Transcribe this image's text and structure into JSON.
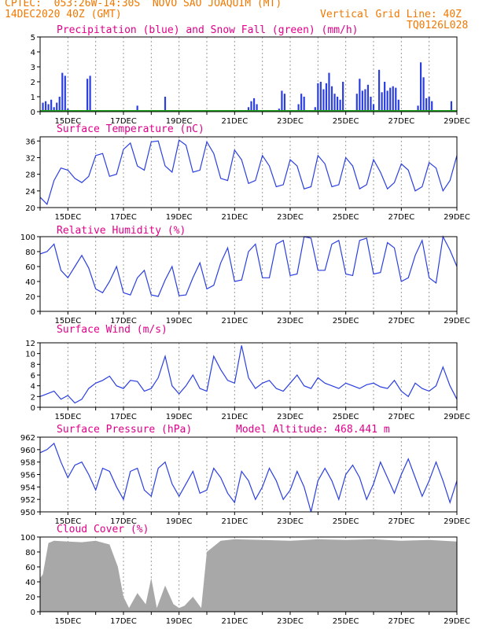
{
  "header": {
    "line1_left": "CPTEC:  053:26W-14:30S  NOVO SAO JOAQUIM (MT)",
    "line2_left": "14DEC2020 40Z (GMT)",
    "line2_right": "Vertical Grid Line: 40Z",
    "line3_right": "TQ0126L028"
  },
  "colors": {
    "precip": "#2b3fe0",
    "snow": "#1fa31f",
    "line": "#2b3fe0",
    "cloud": "#a8a8a8",
    "title": "#e0008a",
    "header": "#f07800"
  },
  "x_tick_labels": [
    "15DEC",
    "17DEC",
    "19DEC",
    "21DEC",
    "23DEC",
    "25DEC",
    "27DEC",
    "29DEC"
  ],
  "chart_data": [
    {
      "type": "bar",
      "title": "Precipitation (blue) and Snow Fall (green) (mm/h)",
      "ylim": [
        0,
        5
      ],
      "yticks": [
        0,
        1,
        2,
        3,
        4,
        5
      ],
      "x": [
        14.1,
        14.2,
        14.3,
        14.4,
        14.5,
        14.6,
        14.7,
        14.8,
        14.9,
        15.0,
        15.1,
        15.7,
        15.8,
        17.5,
        18.5,
        21.5,
        21.6,
        21.7,
        21.8,
        22.6,
        22.7,
        22.8,
        23.3,
        23.4,
        23.5,
        23.9,
        24.0,
        24.1,
        24.2,
        24.3,
        24.4,
        24.5,
        24.6,
        24.7,
        24.8,
        24.9,
        25.4,
        25.5,
        25.6,
        25.7,
        25.8,
        25.9,
        26.0,
        26.2,
        26.3,
        26.4,
        26.5,
        26.6,
        26.7,
        26.8,
        26.9,
        27.6,
        27.7,
        27.8,
        27.9,
        28.0,
        28.1,
        28.8
      ],
      "values": [
        0.6,
        0.7,
        0.5,
        0.8,
        0.3,
        0.6,
        1.0,
        2.6,
        2.4,
        0.2,
        0.1,
        2.2,
        2.4,
        0.4,
        1.0,
        0.3,
        0.7,
        0.9,
        0.5,
        0.2,
        1.4,
        1.2,
        0.5,
        1.2,
        1.0,
        0.3,
        1.9,
        2.0,
        1.5,
        1.9,
        2.6,
        1.7,
        1.2,
        1.0,
        0.8,
        2.0,
        1.2,
        2.2,
        1.4,
        1.5,
        1.8,
        1.0,
        0.5,
        2.8,
        1.3,
        2.0,
        1.4,
        1.6,
        1.7,
        1.6,
        0.8,
        0.4,
        3.3,
        2.3,
        0.9,
        1.0,
        0.7,
        0.7
      ],
      "snow": 0
    },
    {
      "type": "line",
      "title": "Surface Temperature (nC)",
      "ylim": [
        20,
        37
      ],
      "yticks": [
        20,
        24,
        28,
        32,
        36
      ],
      "x": [
        14.0,
        14.25,
        14.5,
        14.75,
        15.0,
        15.25,
        15.5,
        15.75,
        16.0,
        16.25,
        16.5,
        16.75,
        17.0,
        17.25,
        17.5,
        17.75,
        18.0,
        18.25,
        18.5,
        18.75,
        19.0,
        19.25,
        19.5,
        19.75,
        20.0,
        20.25,
        20.5,
        20.75,
        21.0,
        21.25,
        21.5,
        21.75,
        22.0,
        22.25,
        22.5,
        22.75,
        23.0,
        23.25,
        23.5,
        23.75,
        24.0,
        24.25,
        24.5,
        24.75,
        25.0,
        25.25,
        25.5,
        25.75,
        26.0,
        26.25,
        26.5,
        26.75,
        27.0,
        27.25,
        27.5,
        27.75,
        28.0,
        28.25,
        28.5,
        28.75,
        29.0
      ],
      "values": [
        22.5,
        20.8,
        26.5,
        29.5,
        29.0,
        27.0,
        26.0,
        27.5,
        32.5,
        33.0,
        27.5,
        28.0,
        34.0,
        35.5,
        30.0,
        29.0,
        35.8,
        36.0,
        30.0,
        28.5,
        36.2,
        35.0,
        28.5,
        29.0,
        35.8,
        33.0,
        27.0,
        26.5,
        33.8,
        31.5,
        25.8,
        26.5,
        32.5,
        30.0,
        25.0,
        25.5,
        31.5,
        30.0,
        24.5,
        25.0,
        32.5,
        30.5,
        25.0,
        25.5,
        32.0,
        30.0,
        24.5,
        25.5,
        31.5,
        28.5,
        24.5,
        26.0,
        30.5,
        29.0,
        24.0,
        25.0,
        30.8,
        29.5,
        24.0,
        26.5,
        32.5
      ]
    },
    {
      "type": "line",
      "title": "Relative Humidity (%)",
      "ylim": [
        0,
        100
      ],
      "yticks": [
        0,
        20,
        40,
        60,
        80,
        100
      ],
      "x": [
        14.0,
        14.25,
        14.5,
        14.75,
        15.0,
        15.25,
        15.5,
        15.75,
        16.0,
        16.25,
        16.5,
        16.75,
        17.0,
        17.25,
        17.5,
        17.75,
        18.0,
        18.25,
        18.5,
        18.75,
        19.0,
        19.25,
        19.5,
        19.75,
        20.0,
        20.25,
        20.5,
        20.75,
        21.0,
        21.25,
        21.5,
        21.75,
        22.0,
        22.25,
        22.5,
        22.75,
        23.0,
        23.25,
        23.5,
        23.75,
        24.0,
        24.25,
        24.5,
        24.75,
        25.0,
        25.25,
        25.5,
        25.75,
        26.0,
        26.25,
        26.5,
        26.75,
        27.0,
        27.25,
        27.5,
        27.75,
        28.0,
        28.25,
        28.5,
        28.75,
        29.0
      ],
      "values": [
        77,
        80,
        90,
        55,
        45,
        60,
        75,
        58,
        30,
        25,
        40,
        60,
        25,
        22,
        45,
        55,
        22,
        20,
        42,
        60,
        21,
        22,
        45,
        65,
        30,
        35,
        65,
        85,
        40,
        42,
        80,
        90,
        45,
        45,
        90,
        95,
        48,
        50,
        100,
        98,
        55,
        55,
        90,
        95,
        50,
        48,
        95,
        98,
        50,
        52,
        92,
        85,
        40,
        45,
        75,
        95,
        45,
        38,
        100,
        82,
        60
      ]
    },
    {
      "type": "line",
      "title": "Surface Wind (m/s)",
      "ylim": [
        0,
        12
      ],
      "yticks": [
        0,
        2,
        4,
        6,
        8,
        10,
        12
      ],
      "x": [
        14.0,
        14.25,
        14.5,
        14.75,
        15.0,
        15.25,
        15.5,
        15.75,
        16.0,
        16.25,
        16.5,
        16.75,
        17.0,
        17.25,
        17.5,
        17.75,
        18.0,
        18.25,
        18.5,
        18.75,
        19.0,
        19.25,
        19.5,
        19.75,
        20.0,
        20.25,
        20.5,
        20.75,
        21.0,
        21.25,
        21.5,
        21.75,
        22.0,
        22.25,
        22.5,
        22.75,
        23.0,
        23.25,
        23.5,
        23.75,
        24.0,
        24.25,
        24.5,
        24.75,
        25.0,
        25.25,
        25.5,
        25.75,
        26.0,
        26.25,
        26.5,
        26.75,
        27.0,
        27.25,
        27.5,
        27.75,
        28.0,
        28.25,
        28.5,
        28.75,
        29.0
      ],
      "values": [
        2.0,
        2.5,
        3.0,
        1.5,
        2.2,
        0.8,
        1.5,
        3.5,
        4.5,
        5.0,
        5.8,
        4.0,
        3.5,
        5.0,
        4.8,
        3.0,
        3.5,
        5.5,
        9.5,
        4.0,
        2.5,
        4.0,
        6.0,
        3.5,
        3.0,
        9.5,
        7.0,
        5.0,
        4.5,
        11.5,
        5.5,
        3.5,
        4.5,
        5.0,
        3.5,
        3.0,
        4.5,
        6.0,
        4.0,
        3.5,
        5.5,
        4.5,
        4.0,
        3.5,
        4.5,
        4.0,
        3.5,
        4.2,
        4.5,
        3.8,
        3.5,
        5.0,
        3.0,
        2.0,
        4.5,
        3.5,
        3.0,
        4.0,
        7.5,
        4.0,
        1.5
      ]
    },
    {
      "type": "line",
      "title": "Surface Pressure (hPa)",
      "annotation": "Model Altitude: 468.441 m",
      "ylim": [
        950,
        962
      ],
      "yticks": [
        950,
        952,
        954,
        956,
        958,
        960,
        962
      ],
      "x": [
        14.0,
        14.25,
        14.5,
        14.75,
        15.0,
        15.25,
        15.5,
        15.75,
        16.0,
        16.25,
        16.5,
        16.75,
        17.0,
        17.25,
        17.5,
        17.75,
        18.0,
        18.25,
        18.5,
        18.75,
        19.0,
        19.25,
        19.5,
        19.75,
        20.0,
        20.25,
        20.5,
        20.75,
        21.0,
        21.25,
        21.5,
        21.75,
        22.0,
        22.25,
        22.5,
        22.75,
        23.0,
        23.25,
        23.5,
        23.75,
        24.0,
        24.25,
        24.5,
        24.75,
        25.0,
        25.25,
        25.5,
        25.75,
        26.0,
        26.25,
        26.5,
        26.75,
        27.0,
        27.25,
        27.5,
        27.75,
        28.0,
        28.25,
        28.5,
        28.75,
        29.0
      ],
      "values": [
        959.5,
        960.0,
        961.0,
        958.0,
        955.5,
        957.5,
        958.0,
        956.0,
        953.5,
        957.0,
        956.5,
        954.0,
        952.0,
        956.5,
        957.0,
        953.5,
        952.5,
        957.0,
        958.0,
        954.5,
        952.5,
        954.5,
        956.5,
        953.0,
        953.5,
        957.0,
        955.5,
        953.0,
        951.5,
        956.5,
        955.0,
        952.0,
        954.0,
        957.0,
        955.0,
        952.0,
        953.5,
        956.5,
        954.0,
        950.0,
        955.0,
        957.0,
        955.0,
        952.0,
        956.0,
        957.5,
        955.5,
        952.0,
        954.5,
        958.0,
        955.5,
        953.0,
        956.0,
        958.5,
        955.5,
        952.5,
        955.0,
        958.0,
        955.0,
        951.5,
        955.0
      ]
    },
    {
      "type": "area",
      "title": "Cloud Cover (%)",
      "ylim": [
        0,
        100
      ],
      "yticks": [
        0,
        20,
        40,
        60,
        80,
        100
      ],
      "x": [
        14.0,
        14.1,
        14.3,
        14.5,
        15.0,
        15.5,
        16.0,
        16.5,
        16.8,
        17.0,
        17.2,
        17.5,
        17.8,
        18.0,
        18.2,
        18.5,
        18.8,
        19.0,
        19.2,
        19.5,
        19.8,
        20.0,
        20.5,
        21.0,
        22.0,
        23.0,
        24.0,
        25.0,
        26.0,
        27.0,
        28.0,
        29.0
      ],
      "values": [
        45,
        50,
        92,
        95,
        94,
        93,
        95,
        90,
        60,
        20,
        5,
        25,
        10,
        45,
        5,
        35,
        10,
        5,
        8,
        20,
        5,
        80,
        95,
        97,
        96,
        95,
        97,
        96,
        97,
        95,
        96,
        94
      ]
    }
  ]
}
